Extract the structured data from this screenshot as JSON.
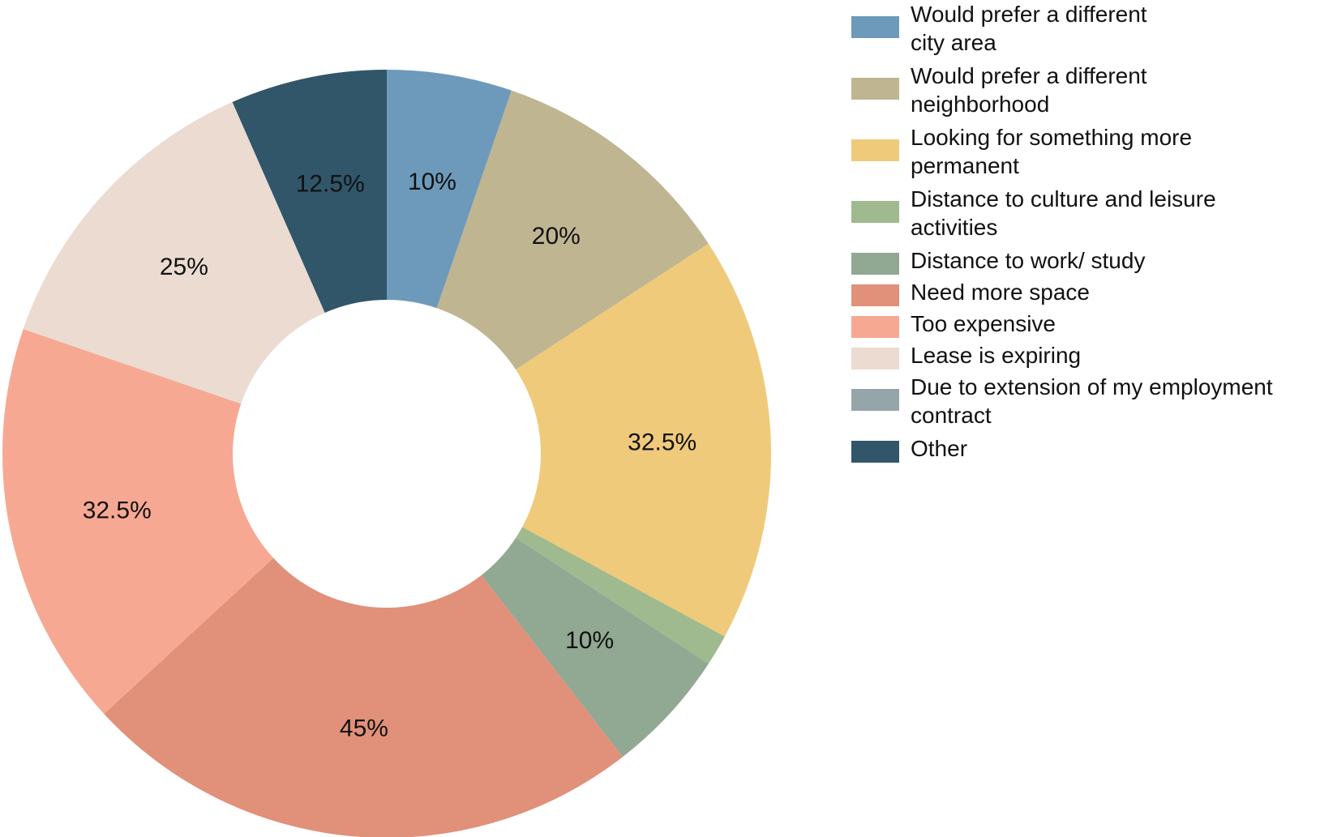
{
  "chart_data": {
    "type": "donut",
    "slices": [
      {
        "label": "Would prefer a different city area",
        "display": "10%",
        "value": 10,
        "color": "#6d9aba"
      },
      {
        "label": "Would prefer a different neighborhood",
        "display": "20%",
        "value": 20,
        "color": "#bfb591"
      },
      {
        "label": "Looking for something more permanent",
        "display": "32.5%",
        "value": 32.5,
        "color": "#efca7a"
      },
      {
        "label": "Distance to culture and leisure activities",
        "display": "",
        "value": 2.5,
        "color": "#9fba8e"
      },
      {
        "label": "Distance to work/ study",
        "display": "10%",
        "value": 10,
        "color": "#91a893"
      },
      {
        "label": "Need more space",
        "display": "45%",
        "value": 45,
        "color": "#e1907a"
      },
      {
        "label": "Too expensive",
        "display": "32.5%",
        "value": 32.5,
        "color": "#f7a893"
      },
      {
        "label": "Lease is expiring",
        "display": "25%",
        "value": 25,
        "color": "#ebdbd1"
      },
      {
        "label": "Due to extension of my employment contract",
        "display": "",
        "value": 0,
        "color": "#95a5a9"
      },
      {
        "label": "Other",
        "display": "12.5%",
        "value": 12.5,
        "color": "#31566a"
      }
    ],
    "legend": {
      "position": "right",
      "entries": [
        {
          "lines": [
            "Would prefer a different",
            "city area"
          ],
          "color": "#6d9aba"
        },
        {
          "lines": [
            "Would prefer a different",
            "neighborhood"
          ],
          "color": "#bfb591"
        },
        {
          "lines": [
            "Looking for something more",
            "permanent"
          ],
          "color": "#efca7a"
        },
        {
          "lines": [
            "Distance to culture and leisure",
            "activities"
          ],
          "color": "#9fba8e"
        },
        {
          "lines": [
            "Distance to work/ study"
          ],
          "color": "#91a893"
        },
        {
          "lines": [
            "Need more space"
          ],
          "color": "#e1907a"
        },
        {
          "lines": [
            "Too expensive"
          ],
          "color": "#f7a893"
        },
        {
          "lines": [
            "Lease is expiring"
          ],
          "color": "#ebdbd1"
        },
        {
          "lines": [
            "Due to extension of my employment",
            "contract"
          ],
          "color": "#95a5a9"
        },
        {
          "lines": [
            "Other"
          ],
          "color": "#31566a"
        }
      ]
    }
  }
}
